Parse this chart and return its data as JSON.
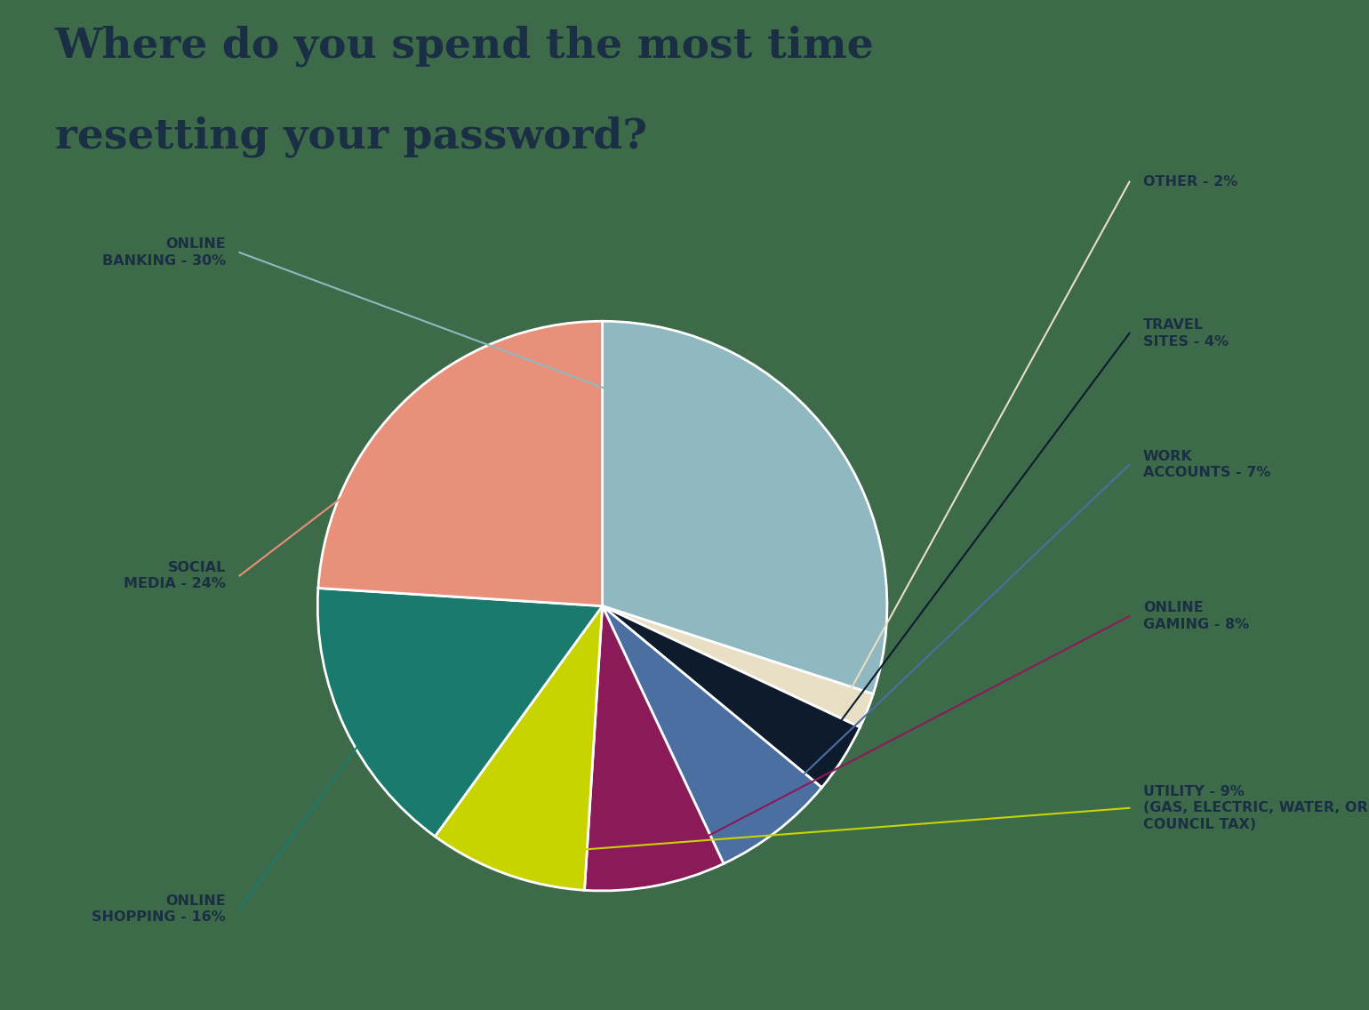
{
  "title_line1": "Where do you spend the most time",
  "title_line2": "resetting your password?",
  "title_color": "#1a2e44",
  "background_color": "#3d6b49",
  "slices": [
    {
      "label": "ONLINE\nBANKING - 30%",
      "value": 30,
      "color": "#8fb8c0",
      "side": "left"
    },
    {
      "label": "OTHER - 2%",
      "value": 2,
      "color": "#e8dfc5",
      "side": "right"
    },
    {
      "label": "TRAVEL\nSITES - 4%",
      "value": 4,
      "color": "#0d1b2d",
      "side": "right"
    },
    {
      "label": "WORK\nACCOUNTS - 7%",
      "value": 7,
      "color": "#4a6fa0",
      "side": "right"
    },
    {
      "label": "ONLINE\nGAMING - 8%",
      "value": 8,
      "color": "#8b1a58",
      "side": "right"
    },
    {
      "label": "UTILITY - 9%\n(GAS, ELECTRIC, WATER, OR\nCOUNCIL TAX)",
      "value": 9,
      "color": "#c8d400",
      "side": "right"
    },
    {
      "label": "ONLINE\nSHOPPING - 16%",
      "value": 16,
      "color": "#1a7a6e",
      "side": "left"
    },
    {
      "label": "SOCIAL\nMEDIA - 24%",
      "value": 24,
      "color": "#e8907a",
      "side": "left"
    }
  ],
  "startangle": 90,
  "figsize": [
    15.4,
    11.36
  ],
  "dpi": 100
}
